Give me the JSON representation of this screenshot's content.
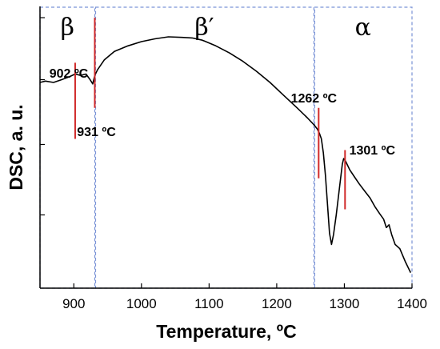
{
  "chart_data": {
    "type": "line",
    "title": "",
    "xlabel": "Temperature, ºC",
    "ylabel": "DSC, a. u.",
    "xlim": [
      850,
      1400
    ],
    "ylim": [
      0,
      10
    ],
    "xticks": [
      900,
      1000,
      1100,
      1200,
      1300,
      1400
    ],
    "yticks": [
      2.6,
      5.1,
      7.4,
      9.6
    ],
    "ytick_labels_shown": false,
    "grid": false,
    "series": [
      {
        "x": [
          850,
          858,
          870,
          882,
          893,
          902,
          910,
          918,
          924,
          928,
          931,
          935,
          945,
          960,
          980,
          1000,
          1020,
          1040,
          1060,
          1075,
          1090,
          1110,
          1130,
          1150,
          1170,
          1190,
          1210,
          1230,
          1245,
          1255,
          1260,
          1263,
          1266,
          1269,
          1272,
          1275,
          1278,
          1281,
          1284,
          1288,
          1293,
          1297,
          1299,
          1302,
          1308,
          1315,
          1322,
          1330,
          1338,
          1345,
          1352,
          1358,
          1362,
          1366,
          1370,
          1375,
          1382,
          1390,
          1398
        ],
        "y": [
          7.3,
          7.35,
          7.3,
          7.4,
          7.5,
          7.6,
          7.55,
          7.6,
          7.4,
          7.25,
          7.55,
          7.75,
          8.1,
          8.4,
          8.6,
          8.75,
          8.85,
          8.92,
          8.9,
          8.88,
          8.8,
          8.6,
          8.35,
          8.05,
          7.7,
          7.3,
          6.85,
          6.4,
          6.05,
          5.8,
          5.65,
          5.5,
          5.3,
          4.8,
          4.0,
          3.0,
          1.95,
          1.55,
          1.9,
          2.6,
          3.6,
          4.4,
          4.6,
          4.5,
          4.2,
          3.95,
          3.7,
          3.45,
          3.2,
          2.9,
          2.65,
          2.45,
          2.15,
          2.25,
          1.9,
          1.55,
          1.4,
          0.95,
          0.55
        ]
      }
    ],
    "phases": [
      {
        "label": "β",
        "from": 850,
        "to": 931
      },
      {
        "label": "β′",
        "from": 931,
        "to": 1255
      },
      {
        "label": "α",
        "from": 1255,
        "to": 1400
      }
    ],
    "annotations": [
      {
        "text": "902 ºC",
        "x": 902
      },
      {
        "text": "931 ºC",
        "x": 931
      },
      {
        "text": "1262 ºC",
        "x": 1262
      },
      {
        "text": "1301 ºC",
        "x": 1301
      }
    ],
    "colors": {
      "line": "#000000",
      "marker": "#d12a2a",
      "phase_box": "#7a93d6",
      "axis": "#000000"
    }
  }
}
